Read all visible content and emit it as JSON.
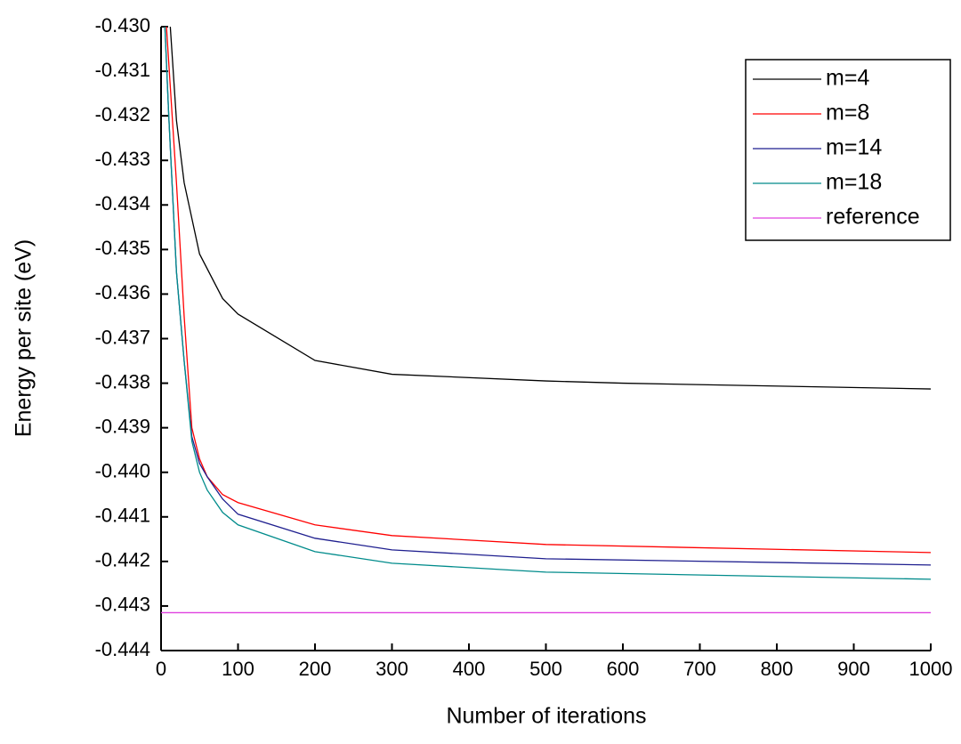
{
  "chart_data": {
    "type": "line",
    "x_label": "Number of iterations",
    "y_label": "Energy per site (eV)",
    "xlim": [
      0,
      1000
    ],
    "xticks": [
      0,
      100,
      200,
      300,
      400,
      500,
      600,
      700,
      800,
      900,
      1000
    ],
    "ylim": [
      -0.444,
      -0.43
    ],
    "yticks": [
      {
        "value": -0.43,
        "label": "-0.430"
      },
      -0.431,
      -0.432,
      -0.433,
      -0.434,
      -0.435,
      -0.436,
      -0.437,
      -0.438,
      -0.439,
      {
        "value": -0.44,
        "label": "-0.440"
      },
      -0.441,
      -0.442,
      -0.443,
      -0.444
    ],
    "legend": "upper right",
    "series": [
      {
        "name": "m=4",
        "color": "#000000",
        "x": [
          12,
          20,
          30,
          50,
          80,
          100,
          200,
          300,
          500,
          600,
          1000
        ],
        "values": [
          -0.43,
          -0.4321,
          -0.4335,
          -0.4351,
          -0.4361,
          -0.43645,
          -0.43749,
          -0.4378,
          -0.43795,
          -0.438,
          -0.43813
        ]
      },
      {
        "name": "m=8",
        "color": "#ff0000",
        "x": [
          7,
          20,
          30,
          40,
          50,
          60,
          80,
          100,
          200,
          300,
          500,
          1000
        ],
        "values": [
          -0.43,
          -0.4335,
          -0.4365,
          -0.439,
          -0.4397,
          -0.4401,
          -0.4405,
          -0.44068,
          -0.44118,
          -0.44142,
          -0.44162,
          -0.4418
        ]
      },
      {
        "name": "m=14",
        "color": "#1f1f8f",
        "x": [
          5,
          10,
          20,
          30,
          40,
          50,
          60,
          80,
          100,
          200,
          300,
          500,
          1000
        ],
        "values": [
          -0.43,
          -0.432,
          -0.4355,
          -0.4375,
          -0.4392,
          -0.4398,
          -0.4401,
          -0.4406,
          -0.44094,
          -0.44148,
          -0.44174,
          -0.44194,
          -0.44208
        ]
      },
      {
        "name": "m=18",
        "color": "#008b8b",
        "x": [
          5,
          10,
          20,
          30,
          40,
          50,
          60,
          80,
          100,
          200,
          300,
          500,
          1000
        ],
        "values": [
          -0.43,
          -0.432,
          -0.4355,
          -0.4375,
          -0.4393,
          -0.44,
          -0.4404,
          -0.4409,
          -0.44118,
          -0.44178,
          -0.44204,
          -0.44224,
          -0.4424
        ]
      },
      {
        "name": "reference",
        "color": "#e040e0",
        "x": [
          0,
          1000
        ],
        "values": [
          -0.44315,
          -0.44315
        ]
      }
    ]
  }
}
